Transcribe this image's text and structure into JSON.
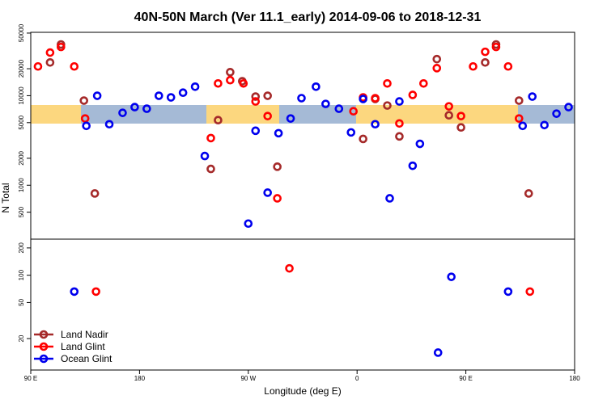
{
  "chart_data": [
    {
      "type": "scatter",
      "title": "40N-50N March (Ver 11.1_early)   2014-09-06 to 2018-12-31",
      "ylabel": "N Total",
      "log_y": true,
      "xlim": [
        90,
        540
      ],
      "ylim": [
        250,
        51000
      ],
      "yticks": [
        500,
        1000,
        2000,
        5000,
        10000,
        20000,
        50000
      ],
      "series": [
        {
          "color": "#a52a2a",
          "x": [
            115,
            106,
            134,
            143,
            239,
            245,
            255,
            265,
            276,
            286,
            294,
            365,
            375,
            385,
            395,
            426,
            436,
            446,
            466,
            475,
            494,
            502
          ],
          "values": [
            37300,
            23500,
            8810,
            809,
            1520,
            5330,
            18300,
            14500,
            9770,
            9980,
            1610,
            3290,
            9190,
            7760,
            3510,
            25600,
            6040,
            4420,
            23500,
            37300,
            8810,
            809
          ]
        },
        {
          "color": "#ff0000",
          "x": [
            96,
            106,
            115,
            126,
            135,
            239,
            245,
            255,
            266,
            276,
            286,
            294,
            357,
            365,
            375,
            385,
            395,
            406,
            415,
            426,
            436,
            446,
            456,
            466,
            475,
            485,
            494
          ],
          "values": [
            21200,
            30300,
            35000,
            21200,
            5560,
            3360,
            13700,
            14900,
            13700,
            8620,
            5920,
            714,
            6700,
            9570,
            9380,
            13700,
            4900,
            10200,
            13700,
            20300,
            7600,
            5920,
            21200,
            30900,
            35000,
            21200,
            5560
          ]
        },
        {
          "color": "#0000ee",
          "x": [
            136,
            145,
            155,
            166,
            176,
            186,
            196,
            206,
            216,
            226,
            234,
            270,
            276,
            286,
            295,
            305,
            314,
            326,
            334,
            345,
            355,
            365,
            375,
            387,
            395,
            406,
            412,
            497,
            505,
            515,
            525,
            535
          ],
          "values": [
            4600,
            9980,
            4800,
            6430,
            7450,
            7150,
            9980,
            9570,
            10800,
            12600,
            2120,
            373,
            4060,
            826,
            3810,
            5560,
            9380,
            12600,
            8090,
            7150,
            3890,
            9190,
            4800,
            714,
            8620,
            1650,
            2900,
            4600,
            9770,
            4700,
            6300,
            7450
          ]
        }
      ]
    },
    {
      "type": "scatter",
      "xlabel": "Longitude (deg E)",
      "log_y": true,
      "xlim": [
        90,
        540
      ],
      "ylim": [
        9,
        250
      ],
      "yticks": [
        20,
        50,
        100,
        200
      ],
      "xticks": [
        {
          "value": 90,
          "label": "90 E"
        },
        {
          "value": 180,
          "label": "180"
        },
        {
          "value": 270,
          "label": "90 W"
        },
        {
          "value": 360,
          "label": "0"
        },
        {
          "value": 450,
          "label": "90 E"
        },
        {
          "value": 540,
          "label": "180"
        }
      ],
      "legend": "bottomleft",
      "series": [
        {
          "name": "Land Nadir",
          "color": "#a52a2a",
          "x": [],
          "values": []
        },
        {
          "name": "Land Glint",
          "color": "#ff0000",
          "x": [
            144,
            304,
            503
          ],
          "values": [
            66,
            119,
            66
          ]
        },
        {
          "name": "Ocean Glint",
          "color": "#0000ee",
          "x": [
            126,
            427,
            438,
            485
          ],
          "values": [
            66,
            14,
            96,
            66
          ]
        }
      ]
    }
  ]
}
